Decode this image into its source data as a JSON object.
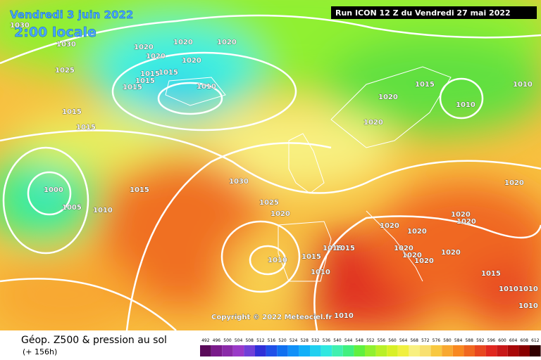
{
  "map": {
    "date": "Vendredi 3 juin 2022",
    "time": "2:00 locale",
    "run": "Run ICON 12 Z du Vendredi 27 mai 2022",
    "copyright": "Copyright © 2022 Meteociel.fr",
    "isobar_labels": [
      1030,
      1030,
      1020,
      1020,
      1020,
      1020,
      1020,
      1015,
      1015,
      1015,
      1015,
      1025,
      1015,
      1015,
      1010,
      1010,
      1010,
      1000,
      1005,
      1010,
      1015,
      1030,
      1025,
      1020,
      1020,
      1015,
      1020,
      1020,
      1020,
      1020,
      1020,
      1020,
      1020,
      1020,
      1020,
      1020,
      1010,
      1015,
      1015,
      1015,
      1010,
      1015,
      1010,
      1010,
      1010,
      1010
    ],
    "legend": {
      "title": "Géop. Z500 & pression au sol",
      "subtitle": "(+ 156h)",
      "scale": [
        492,
        496,
        500,
        504,
        508,
        512,
        516,
        520,
        524,
        528,
        532,
        536,
        540,
        544,
        548,
        552,
        556,
        560,
        564,
        568,
        572,
        576,
        580,
        584,
        588,
        592,
        596,
        600,
        604,
        608,
        612
      ],
      "colors": [
        "#5a0a5a",
        "#7a1a8a",
        "#8a2aa8",
        "#9a3ac8",
        "#7040d8",
        "#3030d8",
        "#2050e8",
        "#1070f0",
        "#1090f8",
        "#10b0f8",
        "#20d0f0",
        "#30e8e0",
        "#40f0b0",
        "#40f080",
        "#60f040",
        "#90f030",
        "#b8f028",
        "#d8f028",
        "#f0f040",
        "#f8f080",
        "#f8e070",
        "#f8c840",
        "#f8a830",
        "#f88820",
        "#f06820",
        "#e84820",
        "#e02820",
        "#c81818",
        "#a80808",
        "#880000",
        "#300000"
      ]
    }
  }
}
